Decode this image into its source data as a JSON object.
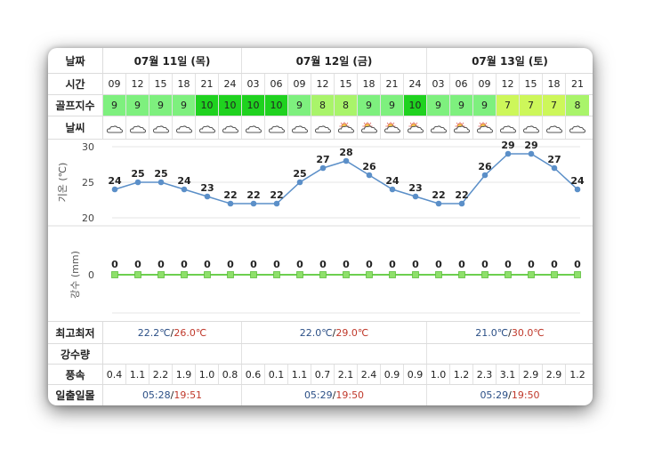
{
  "labels": {
    "date": "날짜",
    "time": "시간",
    "golf": "골프지수",
    "weather": "날씨",
    "temp_axis": "기온 (℃)",
    "rain_axis": "강수 (mm)",
    "minmax": "최고최저",
    "rainfall": "강수량",
    "wind": "풍속",
    "sun": "일출일몰"
  },
  "days": [
    {
      "title": "07월 11일 (목)",
      "min": "22.2℃",
      "max": "26.0℃",
      "sunrise": "05:28",
      "sunset": "19:51",
      "span": 6
    },
    {
      "title": "07월 12일 (금)",
      "min": "22.0℃",
      "max": "29.0℃",
      "sunrise": "05:29",
      "sunset": "19:50",
      "span": 8
    },
    {
      "title": "07월 13일 (토)",
      "min": "21.0℃",
      "max": "30.0℃",
      "sunrise": "05:29",
      "sunset": "19:50",
      "span": 7
    }
  ],
  "hours": [
    "09",
    "12",
    "15",
    "18",
    "21",
    "24",
    "03",
    "06",
    "09",
    "12",
    "15",
    "18",
    "21",
    "24",
    "03",
    "06",
    "09",
    "12",
    "15",
    "18",
    "21"
  ],
  "golf_index": [
    "9",
    "9",
    "9",
    "9",
    "10",
    "10",
    "10",
    "10",
    "9",
    "8",
    "8",
    "9",
    "9",
    "10",
    "9",
    "9",
    "9",
    "7",
    "7",
    "7",
    "8"
  ],
  "golf_colors": {
    "10": "#1fd21f",
    "9": "#7ef07e",
    "8": "#a9f46a",
    "7": "#cdf75a"
  },
  "weather_icons": [
    "cloud-icon",
    "cloud-icon",
    "cloud-icon",
    "cloud-icon",
    "cloud-icon",
    "cloud-icon",
    "cloud-icon",
    "cloud-icon",
    "cloud-icon",
    "cloud-icon",
    "sun-cloud-icon",
    "sun-cloud-icon",
    "sun-cloud-icon",
    "sun-cloud-icon",
    "cloud-icon",
    "sun-cloud-icon",
    "sun-cloud-icon",
    "cloud-icon",
    "cloud-icon",
    "cloud-icon",
    "cloud-icon"
  ],
  "wind": [
    "0.4",
    "1.1",
    "2.2",
    "1.9",
    "1.0",
    "0.8",
    "0.6",
    "0.1",
    "1.1",
    "0.7",
    "2.1",
    "2.4",
    "0.9",
    "0.9",
    "1.0",
    "1.2",
    "2.3",
    "3.1",
    "2.9",
    "2.9",
    "1.2"
  ],
  "chart_data": [
    {
      "type": "line",
      "ylabel": "기온 (℃)",
      "ylim": [
        20,
        30
      ],
      "yticks": [
        20,
        25,
        30
      ],
      "x": [
        "09",
        "12",
        "15",
        "18",
        "21",
        "24",
        "03",
        "06",
        "09",
        "12",
        "15",
        "18",
        "21",
        "24",
        "03",
        "06",
        "09",
        "12",
        "15",
        "18",
        "21"
      ],
      "values": [
        24,
        25,
        25,
        24,
        23,
        22,
        22,
        22,
        25,
        27,
        28,
        26,
        24,
        23,
        22,
        22,
        26,
        29,
        29,
        27,
        24
      ],
      "line_color": "#5b8fc8",
      "grid": true
    },
    {
      "type": "line",
      "ylabel": "강수 (mm)",
      "yticks": [
        0
      ],
      "x": [
        "09",
        "12",
        "15",
        "18",
        "21",
        "24",
        "03",
        "06",
        "09",
        "12",
        "15",
        "18",
        "21",
        "24",
        "03",
        "06",
        "09",
        "12",
        "15",
        "18",
        "21"
      ],
      "values": [
        0,
        0,
        0,
        0,
        0,
        0,
        0,
        0,
        0,
        0,
        0,
        0,
        0,
        0,
        0,
        0,
        0,
        0,
        0,
        0,
        0
      ],
      "line_color": "#6ccf4f",
      "grid": false
    }
  ]
}
